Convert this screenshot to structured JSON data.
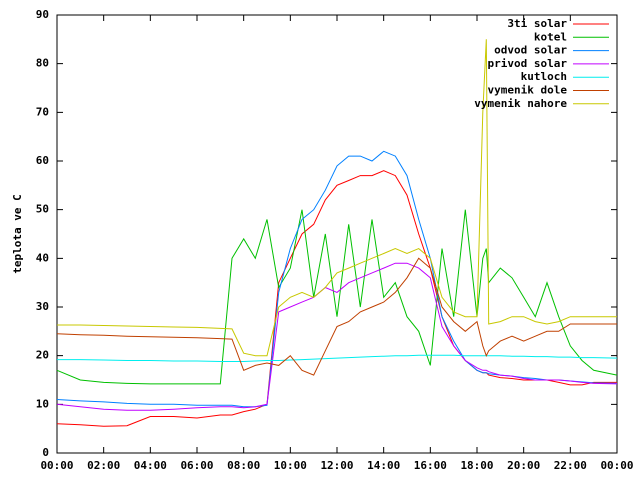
{
  "chart_data": {
    "type": "line",
    "ylabel": "teplota ve C",
    "x": [
      0,
      1,
      2,
      3,
      4,
      5,
      6,
      7,
      7.5,
      8,
      8.5,
      9,
      9.5,
      10,
      10.5,
      11,
      11.5,
      12,
      12.5,
      13,
      13.5,
      14,
      14.5,
      15,
      15.5,
      16,
      16.5,
      17,
      17.5,
      18,
      18.25,
      18.4,
      18.5,
      19,
      19.5,
      20,
      20.5,
      21,
      21.5,
      22,
      22.5,
      23,
      24
    ],
    "xlim": [
      0,
      24
    ],
    "xticks": [
      {
        "value": 0,
        "label": "00:00"
      },
      {
        "value": 2,
        "label": "02:00"
      },
      {
        "value": 4,
        "label": "04:00"
      },
      {
        "value": 6,
        "label": "06:00"
      },
      {
        "value": 8,
        "label": "08:00"
      },
      {
        "value": 10,
        "label": "10:00"
      },
      {
        "value": 12,
        "label": "12:00"
      },
      {
        "value": 14,
        "label": "14:00"
      },
      {
        "value": 16,
        "label": "16:00"
      },
      {
        "value": 18,
        "label": "18:00"
      },
      {
        "value": 20,
        "label": "20:00"
      },
      {
        "value": 22,
        "label": "22:00"
      },
      {
        "value": 24,
        "label": "00:00"
      }
    ],
    "ylim": [
      0,
      90
    ],
    "yticks": [
      0,
      10,
      20,
      30,
      40,
      50,
      60,
      70,
      80,
      90
    ],
    "legend": "top right",
    "series": [
      {
        "name": "3ti solar",
        "color": "#ff0000",
        "values": [
          6,
          5.8,
          5.5,
          5.6,
          7.5,
          7.5,
          7.2,
          7.8,
          7.8,
          8.5,
          9,
          10,
          35,
          40,
          45,
          47,
          52,
          55,
          56,
          57,
          57,
          58,
          57,
          53,
          45,
          38,
          28,
          22,
          19,
          17,
          16.5,
          16.5,
          16,
          15.5,
          15.3,
          15,
          15,
          15,
          14.5,
          14,
          14,
          14.5,
          14.5
        ]
      },
      {
        "name": "kotel",
        "color": "#00c000",
        "values": [
          17,
          15,
          14.5,
          14.3,
          14.2,
          14.2,
          14.2,
          14.2,
          40,
          44,
          40,
          48,
          34,
          38,
          50,
          32,
          45,
          28,
          47,
          30,
          48,
          32,
          35,
          28,
          25,
          18,
          42,
          28,
          50,
          28,
          40,
          42,
          35,
          38,
          36,
          32,
          28,
          35,
          28,
          22,
          19,
          17,
          16
        ]
      },
      {
        "name": "odvod solar",
        "color": "#0080ff",
        "values": [
          11,
          10.7,
          10.5,
          10.2,
          10,
          10,
          9.8,
          9.8,
          9.8,
          9.5,
          9.5,
          9.8,
          33,
          42,
          48,
          50,
          54,
          59,
          61,
          61,
          60,
          62,
          61,
          57,
          48,
          40,
          28,
          23,
          19,
          17,
          16.5,
          16.5,
          16.3,
          16,
          15.8,
          15.5,
          15.3,
          15,
          15,
          14.8,
          14.6,
          14.4,
          14.3
        ]
      },
      {
        "name": "privod solar",
        "color": "#c000ff",
        "values": [
          10,
          9.5,
          9,
          8.8,
          8.8,
          9,
          9.3,
          9.5,
          9.5,
          9.3,
          9.5,
          10,
          29,
          30,
          31,
          32,
          34,
          33,
          35,
          36,
          37,
          38,
          39,
          39,
          38,
          36,
          26,
          22,
          19,
          17.5,
          17,
          17,
          16.7,
          16,
          15.8,
          15.3,
          15,
          15,
          15,
          14.8,
          14.5,
          14.3,
          14.2
        ]
      },
      {
        "name": "kutloch",
        "color": "#00eeee",
        "values": [
          19.2,
          19.2,
          19.1,
          19,
          19,
          18.9,
          18.9,
          18.8,
          18.8,
          18.8,
          18.9,
          19,
          19,
          19.1,
          19.2,
          19.3,
          19.4,
          19.5,
          19.6,
          19.7,
          19.8,
          19.9,
          20,
          20,
          20.1,
          20.1,
          20.1,
          20.1,
          20,
          20,
          20,
          20,
          20,
          20,
          19.9,
          19.9,
          19.8,
          19.8,
          19.7,
          19.7,
          19.6,
          19.6,
          19.5
        ]
      },
      {
        "name": "vymenik dole",
        "color": "#c04000",
        "values": [
          24.5,
          24.3,
          24.2,
          24,
          23.9,
          23.8,
          23.7,
          23.5,
          23.4,
          17,
          18,
          18.5,
          18,
          20,
          17,
          16,
          21,
          26,
          27,
          29,
          30,
          31,
          33,
          36,
          40,
          38,
          30,
          27,
          25,
          27,
          22,
          20,
          21,
          23,
          24,
          23,
          24,
          25,
          25,
          26.5,
          26.5,
          26.5,
          26.5
        ]
      },
      {
        "name": "vymenik nahore",
        "color": "#c8c800",
        "values": [
          26.3,
          26.3,
          26.2,
          26.1,
          26,
          25.9,
          25.8,
          25.6,
          25.5,
          20.5,
          20,
          20,
          30,
          32,
          33,
          32,
          34,
          37,
          38,
          39,
          40,
          41,
          42,
          41,
          42,
          40,
          32,
          29,
          28,
          28,
          70,
          85,
          26.5,
          27,
          28,
          28,
          27,
          26.5,
          27,
          28,
          28,
          28,
          28
        ]
      }
    ]
  }
}
